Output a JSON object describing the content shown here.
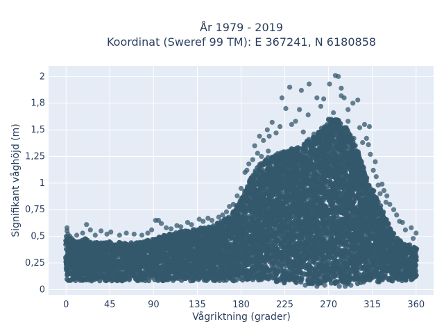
{
  "chart_data": {
    "type": "scatter",
    "title_line1": "År 1979 - 2019",
    "title_line2": "Koordinat (Sweref 99 TM): E 367241, N 6180858",
    "xlabel": "Vågriktning (grader)",
    "ylabel": "Signifikant våghöjd (m)",
    "xlim": [
      -18,
      378
    ],
    "ylim": [
      -0.05,
      2.1
    ],
    "xticks": [
      0,
      45,
      90,
      135,
      180,
      225,
      270,
      315,
      360
    ],
    "xtick_labels": [
      "0",
      "45",
      "90",
      "135",
      "180",
      "225",
      "270",
      "315",
      "360"
    ],
    "yticks": [
      0,
      0.25,
      0.5,
      0.75,
      1,
      1.25,
      1.5,
      1.75,
      2
    ],
    "ytick_labels": [
      "0",
      "0,25",
      "0,5",
      "0,75",
      "1",
      "1,25",
      "1,5",
      "1,8",
      "2"
    ],
    "grid": true,
    "marker_color": "#34586c",
    "plot_background": "#e5ecf6",
    "envelope": {
      "direction": [
        0,
        10,
        20,
        30,
        45,
        60,
        75,
        90,
        105,
        120,
        135,
        150,
        160,
        170,
        180,
        190,
        200,
        210,
        225,
        240,
        255,
        270,
        280,
        290,
        300,
        310,
        315,
        325,
        335,
        345,
        360
      ],
      "lower_height": [
        0.08,
        0.08,
        0.08,
        0.08,
        0.08,
        0.08,
        0.08,
        0.08,
        0.08,
        0.08,
        0.08,
        0.08,
        0.08,
        0.08,
        0.08,
        0.08,
        0.07,
        0.07,
        0.06,
        0.06,
        0.05,
        0.05,
        0.05,
        0.04,
        0.05,
        0.06,
        0.06,
        0.07,
        0.08,
        0.08,
        0.08
      ],
      "upper_height": [
        0.5,
        0.45,
        0.48,
        0.45,
        0.45,
        0.44,
        0.44,
        0.48,
        0.52,
        0.55,
        0.57,
        0.6,
        0.64,
        0.7,
        0.85,
        1.05,
        1.2,
        1.25,
        1.3,
        1.35,
        1.45,
        1.6,
        1.6,
        1.5,
        1.3,
        1.05,
        0.95,
        0.75,
        0.55,
        0.45,
        0.4
      ]
    },
    "outliers": [
      {
        "x": 277,
        "y": 2.01
      },
      {
        "x": 280,
        "y": 2.0
      },
      {
        "x": 271,
        "y": 1.93
      },
      {
        "x": 283,
        "y": 1.89
      },
      {
        "x": 250,
        "y": 1.93
      },
      {
        "x": 230,
        "y": 1.9
      },
      {
        "x": 242,
        "y": 1.87
      },
      {
        "x": 283,
        "y": 1.82
      },
      {
        "x": 286,
        "y": 1.8
      },
      {
        "x": 222,
        "y": 1.8
      },
      {
        "x": 265,
        "y": 1.79
      },
      {
        "x": 258,
        "y": 1.8
      },
      {
        "x": 262,
        "y": 1.72
      },
      {
        "x": 300,
        "y": 1.78
      },
      {
        "x": 295,
        "y": 1.75
      },
      {
        "x": 290,
        "y": 1.69
      },
      {
        "x": 275,
        "y": 1.66
      },
      {
        "x": 240,
        "y": 1.69
      },
      {
        "x": 226,
        "y": 1.7
      },
      {
        "x": 249,
        "y": 1.64
      },
      {
        "x": 270,
        "y": 1.6
      },
      {
        "x": 236,
        "y": 1.58
      },
      {
        "x": 212,
        "y": 1.57
      },
      {
        "x": 220,
        "y": 1.53
      },
      {
        "x": 232,
        "y": 1.55
      },
      {
        "x": 290,
        "y": 1.58
      },
      {
        "x": 307,
        "y": 1.55
      },
      {
        "x": 312,
        "y": 1.53
      },
      {
        "x": 302,
        "y": 1.52
      },
      {
        "x": 207,
        "y": 1.5
      },
      {
        "x": 216,
        "y": 1.47
      },
      {
        "x": 199,
        "y": 1.44
      },
      {
        "x": 203,
        "y": 1.4
      },
      {
        "x": 209,
        "y": 1.44
      },
      {
        "x": 244,
        "y": 1.48
      },
      {
        "x": 255,
        "y": 1.46
      },
      {
        "x": 266,
        "y": 1.5
      },
      {
        "x": 286,
        "y": 1.48
      },
      {
        "x": 296,
        "y": 1.42
      },
      {
        "x": 305,
        "y": 1.38
      },
      {
        "x": 309,
        "y": 1.42
      },
      {
        "x": 311,
        "y": 1.36
      },
      {
        "x": 194,
        "y": 1.35
      },
      {
        "x": 197,
        "y": 1.28
      },
      {
        "x": 201,
        "y": 1.25
      },
      {
        "x": 192,
        "y": 1.22
      },
      {
        "x": 188,
        "y": 1.18
      },
      {
        "x": 186,
        "y": 1.12
      },
      {
        "x": 184,
        "y": 1.1
      },
      {
        "x": 208,
        "y": 1.3
      },
      {
        "x": 313,
        "y": 1.27
      },
      {
        "x": 318,
        "y": 1.2
      },
      {
        "x": 316,
        "y": 1.12
      },
      {
        "x": 319,
        "y": 1.06
      },
      {
        "x": 321,
        "y": 0.98
      },
      {
        "x": 325,
        "y": 0.99
      },
      {
        "x": 327,
        "y": 0.93
      },
      {
        "x": 330,
        "y": 0.88
      },
      {
        "x": 323,
        "y": 0.9
      },
      {
        "x": 329,
        "y": 0.82
      },
      {
        "x": 333,
        "y": 0.8
      },
      {
        "x": 337,
        "y": 0.75
      },
      {
        "x": 340,
        "y": 0.7
      },
      {
        "x": 343,
        "y": 0.64
      },
      {
        "x": 346,
        "y": 0.63
      },
      {
        "x": 349,
        "y": 0.56
      },
      {
        "x": 355,
        "y": 0.58
      },
      {
        "x": 360,
        "y": 0.53
      },
      {
        "x": 357,
        "y": 0.48
      },
      {
        "x": 180,
        "y": 0.95
      },
      {
        "x": 176,
        "y": 0.88
      },
      {
        "x": 172,
        "y": 0.8
      },
      {
        "x": 168,
        "y": 0.78
      },
      {
        "x": 165,
        "y": 0.73
      },
      {
        "x": 161,
        "y": 0.7
      },
      {
        "x": 157,
        "y": 0.68
      },
      {
        "x": 150,
        "y": 0.65
      },
      {
        "x": 146,
        "y": 0.67
      },
      {
        "x": 141,
        "y": 0.64
      },
      {
        "x": 137,
        "y": 0.66
      },
      {
        "x": 129,
        "y": 0.61
      },
      {
        "x": 125,
        "y": 0.63
      },
      {
        "x": 118,
        "y": 0.59
      },
      {
        "x": 114,
        "y": 0.6
      },
      {
        "x": 108,
        "y": 0.57
      },
      {
        "x": 103,
        "y": 0.58
      },
      {
        "x": 92,
        "y": 0.65
      },
      {
        "x": 95,
        "y": 0.65
      },
      {
        "x": 98,
        "y": 0.62
      },
      {
        "x": 88,
        "y": 0.56
      },
      {
        "x": 84,
        "y": 0.53
      },
      {
        "x": 78,
        "y": 0.51
      },
      {
        "x": 70,
        "y": 0.52
      },
      {
        "x": 62,
        "y": 0.53
      },
      {
        "x": 55,
        "y": 0.51
      },
      {
        "x": 46,
        "y": 0.54
      },
      {
        "x": 42,
        "y": 0.52
      },
      {
        "x": 36,
        "y": 0.55
      },
      {
        "x": 30,
        "y": 0.51
      },
      {
        "x": 25,
        "y": 0.56
      },
      {
        "x": 21,
        "y": 0.61
      },
      {
        "x": 17,
        "y": 0.53
      },
      {
        "x": 11,
        "y": 0.51
      },
      {
        "x": 6,
        "y": 0.48
      },
      {
        "x": 1,
        "y": 0.58
      },
      {
        "x": 1,
        "y": 0.55
      },
      {
        "x": 2,
        "y": 0.52
      },
      {
        "x": 4,
        "y": 0.5
      },
      {
        "x": 258,
        "y": 0.03
      },
      {
        "x": 266,
        "y": 0.04
      },
      {
        "x": 281,
        "y": 0.03
      },
      {
        "x": 287,
        "y": 0.03
      },
      {
        "x": 293,
        "y": 0.04
      },
      {
        "x": 246,
        "y": 0.04
      }
    ]
  }
}
